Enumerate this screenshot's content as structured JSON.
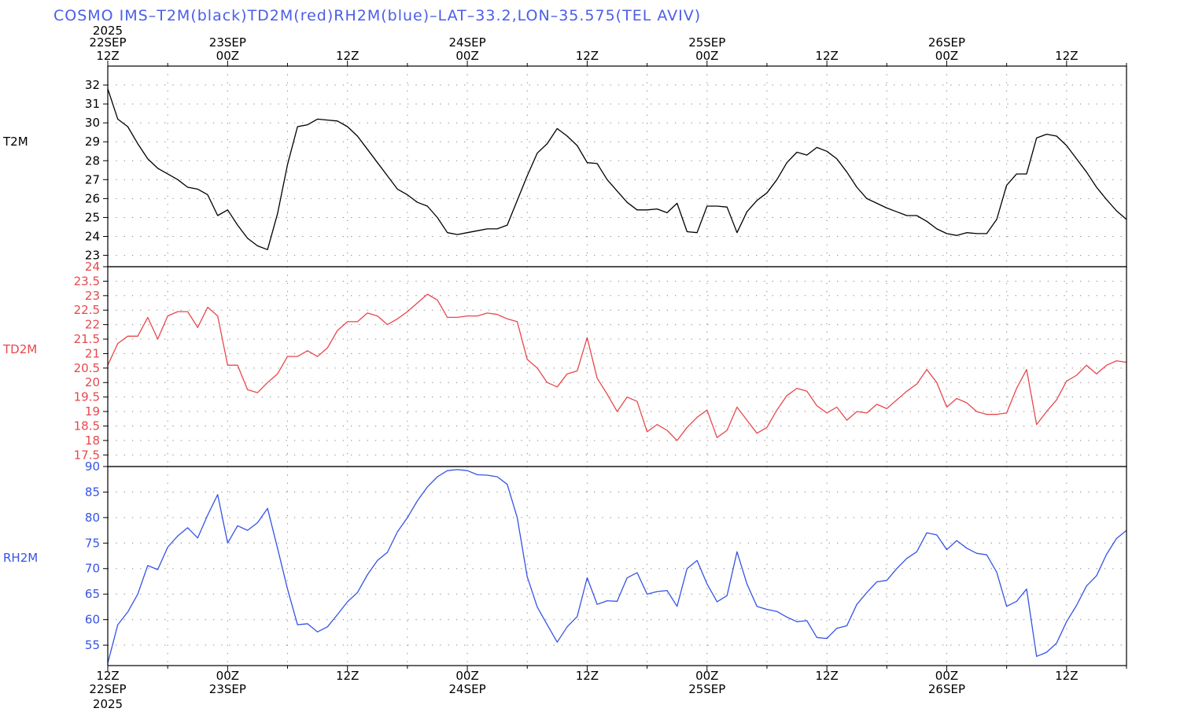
{
  "title": "COSMO IMS–T2M(black)TD2M(red)RH2M(blue)–LAT–33.2,LON–35.575(TEL AVIV)",
  "colors": {
    "title": "#4a5ee8",
    "t2m": "#000000",
    "td2m": "#e8474b",
    "rh2m": "#3553e6",
    "grid": "#888888"
  },
  "time_axis": {
    "start_hour": 0,
    "end_hour": 102,
    "top_year_label": "2025",
    "bottom_year_label": "2025",
    "ticks": [
      {
        "hour": 0,
        "lines": [
          "22SEP",
          "12Z"
        ]
      },
      {
        "hour": 12,
        "lines": [
          "23SEP",
          "00Z"
        ]
      },
      {
        "hour": 24,
        "lines": [
          "12Z"
        ]
      },
      {
        "hour": 36,
        "lines": [
          "24SEP",
          "00Z"
        ]
      },
      {
        "hour": 48,
        "lines": [
          "12Z"
        ]
      },
      {
        "hour": 60,
        "lines": [
          "25SEP",
          "00Z"
        ]
      },
      {
        "hour": 72,
        "lines": [
          "12Z"
        ]
      },
      {
        "hour": 84,
        "lines": [
          "26SEP",
          "00Z"
        ]
      },
      {
        "hour": 96,
        "lines": [
          "12Z"
        ]
      }
    ],
    "bottom_ticks": [
      {
        "hour": 0,
        "lines": [
          "12Z",
          "22SEP"
        ]
      },
      {
        "hour": 12,
        "lines": [
          "00Z",
          "23SEP"
        ]
      },
      {
        "hour": 24,
        "lines": [
          "12Z"
        ]
      },
      {
        "hour": 36,
        "lines": [
          "00Z",
          "24SEP"
        ]
      },
      {
        "hour": 48,
        "lines": [
          "12Z"
        ]
      },
      {
        "hour": 60,
        "lines": [
          "00Z",
          "25SEP"
        ]
      },
      {
        "hour": 72,
        "lines": [
          "12Z"
        ]
      },
      {
        "hour": 84,
        "lines": [
          "00Z",
          "26SEP"
        ]
      },
      {
        "hour": 96,
        "lines": [
          "12Z"
        ]
      }
    ]
  },
  "chart_data": [
    {
      "type": "line",
      "series_label": "T2M",
      "ylim": [
        22.4,
        33.0
      ],
      "yticks": [
        23,
        24,
        25,
        26,
        27,
        28,
        29,
        30,
        31,
        32
      ],
      "grid": true,
      "x": [
        0,
        1,
        2,
        3,
        4,
        5,
        6,
        7,
        8,
        9,
        10,
        11,
        12,
        13,
        14,
        15,
        16,
        17,
        18,
        19,
        20,
        21,
        22,
        23,
        24,
        25,
        26,
        27,
        28,
        29,
        30,
        31,
        32,
        33,
        34,
        35,
        36,
        37,
        38,
        39,
        40,
        41,
        42,
        43,
        44,
        45,
        46,
        47,
        48,
        49,
        50,
        51,
        52,
        53,
        54,
        55,
        56,
        57,
        58,
        59,
        60,
        61,
        62,
        63,
        64,
        65,
        66,
        67,
        68,
        69,
        70,
        71,
        72,
        73,
        74,
        75,
        76,
        77,
        78,
        79,
        80,
        81,
        82,
        83,
        84,
        85,
        86,
        87,
        88,
        89,
        90,
        91,
        92,
        93,
        94,
        95,
        96,
        97,
        98,
        99,
        100,
        101,
        102
      ],
      "values": [
        31.8,
        30.2,
        29.8,
        28.9,
        28.1,
        27.6,
        27.3,
        27.0,
        26.6,
        26.5,
        26.2,
        25.1,
        25.4,
        24.6,
        23.9,
        23.5,
        23.3,
        25.2,
        27.8,
        29.8,
        29.9,
        30.2,
        30.15,
        30.1,
        29.8,
        29.3,
        28.6,
        27.9,
        27.2,
        26.5,
        26.2,
        25.8,
        25.6,
        25.0,
        24.2,
        24.1,
        24.2,
        24.3,
        24.4,
        24.4,
        24.6,
        25.9,
        27.2,
        28.4,
        28.9,
        29.7,
        29.3,
        28.8,
        27.9,
        27.85,
        27.0,
        26.4,
        25.8,
        25.4,
        25.4,
        25.45,
        25.25,
        25.75,
        24.25,
        24.2,
        25.6,
        25.6,
        25.55,
        24.2,
        25.3,
        25.9,
        26.3,
        27.0,
        27.9,
        28.45,
        28.3,
        28.7,
        28.5,
        28.1,
        27.4,
        26.6,
        26.0,
        25.75,
        25.5,
        25.3,
        25.1,
        25.1,
        24.8,
        24.4,
        24.15,
        24.05,
        24.2,
        24.15,
        24.15,
        24.9,
        26.7,
        27.3,
        27.3,
        29.2,
        29.4,
        29.3,
        28.8,
        28.1,
        27.4,
        26.6,
        25.95,
        25.35,
        24.9
      ]
    },
    {
      "type": "line",
      "series_label": "TD2M",
      "ylim": [
        17.1,
        24.0
      ],
      "yticks": [
        17.5,
        18,
        18.5,
        19,
        19.5,
        20,
        20.5,
        21,
        21.5,
        22,
        22.5,
        23,
        23.5,
        24
      ],
      "grid": true,
      "x": [
        0,
        1,
        2,
        3,
        4,
        5,
        6,
        7,
        8,
        9,
        10,
        11,
        12,
        13,
        14,
        15,
        16,
        17,
        18,
        19,
        20,
        21,
        22,
        23,
        24,
        25,
        26,
        27,
        28,
        29,
        30,
        31,
        32,
        33,
        34,
        35,
        36,
        37,
        38,
        39,
        40,
        41,
        42,
        43,
        44,
        45,
        46,
        47,
        48,
        49,
        50,
        51,
        52,
        53,
        54,
        55,
        56,
        57,
        58,
        59,
        60,
        61,
        62,
        63,
        64,
        65,
        66,
        67,
        68,
        69,
        70,
        71,
        72,
        73,
        74,
        75,
        76,
        77,
        78,
        79,
        80,
        81,
        82,
        83,
        84,
        85,
        86,
        87,
        88,
        89,
        90,
        91,
        92,
        93,
        94,
        95,
        96,
        97,
        98,
        99,
        100,
        101,
        102
      ],
      "values": [
        20.6,
        21.35,
        21.6,
        21.6,
        22.25,
        21.5,
        22.3,
        22.45,
        22.45,
        21.9,
        22.6,
        22.3,
        20.6,
        20.6,
        19.75,
        19.65,
        20.0,
        20.3,
        20.9,
        20.9,
        21.1,
        20.9,
        21.2,
        21.8,
        22.1,
        22.1,
        22.4,
        22.3,
        22.0,
        22.2,
        22.45,
        22.75,
        23.05,
        22.85,
        22.25,
        22.25,
        22.3,
        22.3,
        22.4,
        22.35,
        22.2,
        22.1,
        20.8,
        20.5,
        20.0,
        19.85,
        20.3,
        20.4,
        21.55,
        20.15,
        19.6,
        19.0,
        19.5,
        19.35,
        18.3,
        18.55,
        18.35,
        18.0,
        18.45,
        18.8,
        19.05,
        18.1,
        18.35,
        19.15,
        18.7,
        18.25,
        18.45,
        19.05,
        19.55,
        19.8,
        19.7,
        19.2,
        18.95,
        19.15,
        18.7,
        19.0,
        18.95,
        19.25,
        19.1,
        19.4,
        19.7,
        19.95,
        20.45,
        20.0,
        19.15,
        19.45,
        19.3,
        19.0,
        18.9,
        18.9,
        18.95,
        19.8,
        20.45,
        18.55,
        19.0,
        19.4,
        20.05,
        20.25,
        20.6,
        20.3,
        20.6,
        20.75,
        20.7
      ]
    },
    {
      "type": "line",
      "series_label": "RH2M",
      "ylim": [
        51.0,
        90.0
      ],
      "yticks": [
        55,
        60,
        65,
        70,
        75,
        80,
        85,
        90
      ],
      "grid": true,
      "x": [
        0,
        1,
        2,
        3,
        4,
        5,
        6,
        7,
        8,
        9,
        10,
        11,
        12,
        13,
        14,
        15,
        16,
        17,
        18,
        19,
        20,
        21,
        22,
        23,
        24,
        25,
        26,
        27,
        28,
        29,
        30,
        31,
        32,
        33,
        34,
        35,
        36,
        37,
        38,
        39,
        40,
        41,
        42,
        43,
        44,
        45,
        46,
        47,
        48,
        49,
        50,
        51,
        52,
        53,
        54,
        55,
        56,
        57,
        58,
        59,
        60,
        61,
        62,
        63,
        64,
        65,
        66,
        67,
        68,
        69,
        70,
        71,
        72,
        73,
        74,
        75,
        76,
        77,
        78,
        79,
        80,
        81,
        82,
        83,
        84,
        85,
        86,
        87,
        88,
        89,
        90,
        91,
        92,
        93,
        94,
        95,
        96,
        97,
        98,
        99,
        100,
        101,
        102
      ],
      "values": [
        51.5,
        59.0,
        61.5,
        65.0,
        70.6,
        69.8,
        74.2,
        76.4,
        78.0,
        76.0,
        80.5,
        84.5,
        75.0,
        78.4,
        77.5,
        79.0,
        81.8,
        74.0,
        66.0,
        59.0,
        59.2,
        57.6,
        58.6,
        61.0,
        63.5,
        65.3,
        68.8,
        71.6,
        73.2,
        77.2,
        80.0,
        83.3,
        86.0,
        88.0,
        89.2,
        89.4,
        89.2,
        88.4,
        88.3,
        88.0,
        86.5,
        80.0,
        68.4,
        62.5,
        59.0,
        55.6,
        58.6,
        60.6,
        68.2,
        63.0,
        63.7,
        63.6,
        68.2,
        69.2,
        65.0,
        65.5,
        65.7,
        62.6,
        70.0,
        71.6,
        67.0,
        63.5,
        64.7,
        73.3,
        67.0,
        62.6,
        62.0,
        61.6,
        60.5,
        59.6,
        59.8,
        56.5,
        56.3,
        58.3,
        58.8,
        63.0,
        65.3,
        67.4,
        67.7,
        70.0,
        72.0,
        73.3,
        77.0,
        76.6,
        73.7,
        75.5,
        74.0,
        73.0,
        72.7,
        69.3,
        62.6,
        63.6,
        66.0,
        52.8,
        53.6,
        55.4,
        59.6,
        62.8,
        66.6,
        68.6,
        72.8,
        75.9,
        77.5
      ]
    }
  ]
}
